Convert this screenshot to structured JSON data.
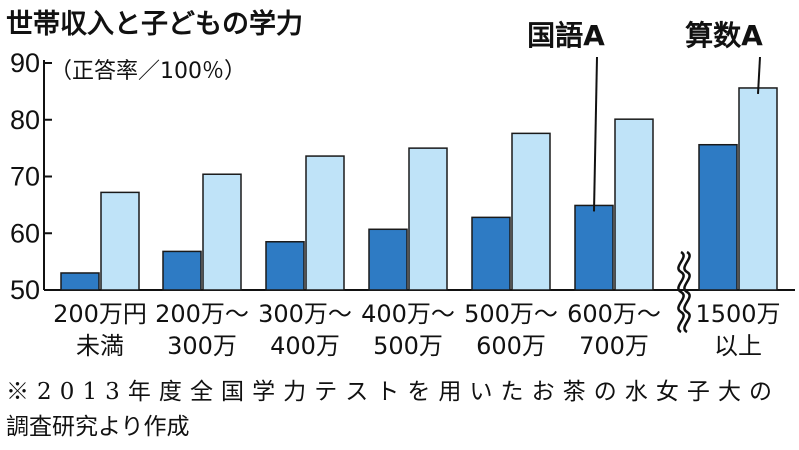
{
  "chart_data": {
    "type": "bar",
    "title": "世帯収入と子どもの学力",
    "ylabel": "（正答率／100％）",
    "ylim": [
      50,
      90
    ],
    "yticks": [
      50,
      60,
      70,
      80,
      90
    ],
    "categories": [
      [
        "200万円",
        "未満"
      ],
      [
        "200万〜",
        "300万"
      ],
      [
        "300万〜",
        "400万"
      ],
      [
        "400万〜",
        "500万"
      ],
      [
        "500万〜",
        "600万"
      ],
      [
        "600万〜",
        "700万"
      ],
      [
        "1500万",
        "以上"
      ]
    ],
    "series": [
      {
        "name": "国語A",
        "color": "#2e7bc4",
        "values": [
          53.0,
          56.8,
          58.5,
          60.7,
          62.8,
          64.9,
          75.6
        ]
      },
      {
        "name": "算数A",
        "color": "#bfe3f8",
        "values": [
          67.2,
          70.4,
          73.6,
          75.0,
          77.6,
          80.1,
          85.6
        ]
      }
    ],
    "axis_break": "between 600万〜700万 and 1500万以上",
    "grid": false,
    "legend": "callout labels above bars"
  },
  "footnote": [
    "※2013年度全国学力テストを用いたお茶の水女子大の",
    "調査研究より作成"
  ]
}
